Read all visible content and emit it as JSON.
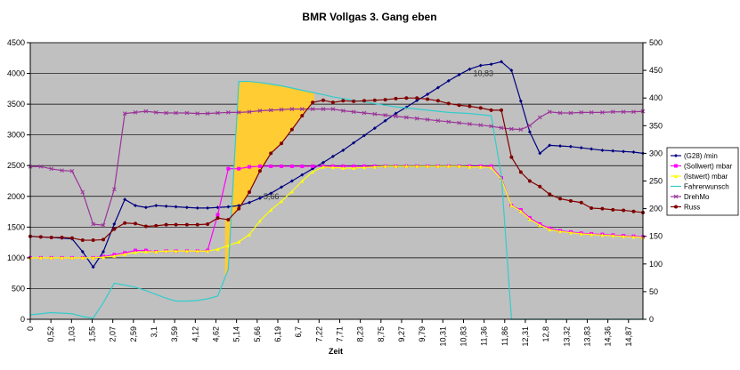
{
  "chart_data": {
    "type": "line",
    "title": "BMR Vollgas 3. Gang eben",
    "xlabel": "Zeit",
    "ylabel": "",
    "ylim": [
      0,
      4500
    ],
    "y2lim": [
      0,
      500
    ],
    "yticks": [
      0,
      500,
      1000,
      1500,
      2000,
      2500,
      3000,
      3500,
      4000,
      4500
    ],
    "y2ticks": [
      0,
      50,
      100,
      150,
      200,
      250,
      300,
      350,
      400,
      450,
      500
    ],
    "xlim": [
      0,
      15.1
    ],
    "xtick_labels": [
      "0",
      "0,52",
      "1,03",
      "1,55",
      "2,07",
      "2,59",
      "3,1",
      "3,59",
      "4,12",
      "4,62",
      "5,14",
      "5,66",
      "6,19",
      "6,7",
      "7,22",
      "7,71",
      "8,23",
      "8,75",
      "9,27",
      "9,79",
      "10,31",
      "10,83",
      "11,36",
      "11,86",
      "12,31",
      "12,8",
      "13,32",
      "13,83",
      "14,36",
      "14,87"
    ],
    "grid": true,
    "legend_position": "right",
    "background": "#c0c0c0",
    "annotations": [
      {
        "text": "10,83",
        "x": 10.83,
        "y": 4000
      },
      {
        "text": "5,66",
        "x": 5.66,
        "y": 2000
      }
    ],
    "shaded_area": {
      "color": "#ffcc33",
      "x_start": 4.8,
      "x_end": 7.0,
      "between": [
        "Fahrerwunsch",
        "Russ"
      ]
    },
    "series": [
      {
        "name": "(G28) /min",
        "axis": "left",
        "color": "#000080",
        "marker": "diamond",
        "x": [
          0,
          0.26,
          0.52,
          0.78,
          1.03,
          1.29,
          1.55,
          1.8,
          2.07,
          2.33,
          2.59,
          2.85,
          3.1,
          3.35,
          3.59,
          3.86,
          4.12,
          4.37,
          4.62,
          4.88,
          5.14,
          5.4,
          5.66,
          5.93,
          6.19,
          6.45,
          6.7,
          6.96,
          7.22,
          7.46,
          7.71,
          7.97,
          8.23,
          8.49,
          8.75,
          9.01,
          9.27,
          9.53,
          9.79,
          10.05,
          10.31,
          10.57,
          10.83,
          11.1,
          11.36,
          11.61,
          11.86,
          12.09,
          12.31,
          12.56,
          12.8,
          13.06,
          13.32,
          13.58,
          13.83,
          14.1,
          14.36,
          14.62,
          14.87,
          15.1
        ],
        "values": [
          1350,
          1340,
          1330,
          1320,
          1310,
          1100,
          850,
          1100,
          1550,
          1950,
          1850,
          1820,
          1850,
          1840,
          1830,
          1820,
          1810,
          1810,
          1820,
          1830,
          1850,
          1900,
          1970,
          2050,
          2150,
          2250,
          2350,
          2450,
          2550,
          2650,
          2750,
          2870,
          2990,
          3110,
          3230,
          3350,
          3450,
          3560,
          3660,
          3770,
          3880,
          3980,
          4070,
          4130,
          4150,
          4190,
          4050,
          3550,
          3050,
          2700,
          2830,
          2820,
          2810,
          2790,
          2770,
          2750,
          2740,
          2730,
          2720,
          2700
        ]
      },
      {
        "name": "(Sollwert) mbar",
        "axis": "left",
        "color": "#ff00ff",
        "marker": "square",
        "x": [
          0,
          0.26,
          0.52,
          0.78,
          1.03,
          1.29,
          1.55,
          1.8,
          2.07,
          2.33,
          2.59,
          2.85,
          3.1,
          3.35,
          3.59,
          3.86,
          4.12,
          4.37,
          4.62,
          4.88,
          5.14,
          5.4,
          5.66,
          5.93,
          6.19,
          6.45,
          6.7,
          6.96,
          7.22,
          7.46,
          7.71,
          7.97,
          8.23,
          8.49,
          8.75,
          9.01,
          9.27,
          9.53,
          9.79,
          10.05,
          10.31,
          10.57,
          10.83,
          11.1,
          11.36,
          11.61,
          11.86,
          12.09,
          12.31,
          12.56,
          12.8,
          13.06,
          13.32,
          13.58,
          13.83,
          14.1,
          14.36,
          14.62,
          14.87,
          15.1
        ],
        "values": [
          1000,
          1000,
          1000,
          1000,
          1000,
          1000,
          1000,
          1020,
          1050,
          1080,
          1120,
          1120,
          1100,
          1110,
          1110,
          1110,
          1110,
          1120,
          1700,
          2450,
          2450,
          2480,
          2490,
          2490,
          2490,
          2490,
          2490,
          2490,
          2490,
          2490,
          2490,
          2490,
          2490,
          2490,
          2490,
          2490,
          2490,
          2490,
          2490,
          2490,
          2490,
          2490,
          2490,
          2490,
          2490,
          2300,
          1850,
          1780,
          1650,
          1550,
          1480,
          1440,
          1420,
          1400,
          1390,
          1380,
          1370,
          1360,
          1350,
          1340
        ]
      },
      {
        "name": "(Istwert) mbar",
        "axis": "left",
        "color": "#ffff00",
        "marker": "triangle",
        "x": [
          0,
          0.26,
          0.52,
          0.78,
          1.03,
          1.29,
          1.55,
          1.8,
          2.07,
          2.33,
          2.59,
          2.85,
          3.1,
          3.35,
          3.59,
          3.86,
          4.12,
          4.37,
          4.62,
          4.88,
          5.14,
          5.4,
          5.66,
          5.93,
          6.19,
          6.45,
          6.7,
          6.96,
          7.22,
          7.46,
          7.71,
          7.97,
          8.23,
          8.49,
          8.75,
          9.01,
          9.27,
          9.53,
          9.79,
          10.05,
          10.31,
          10.57,
          10.83,
          11.1,
          11.36,
          11.61,
          11.86,
          12.09,
          12.31,
          12.56,
          12.8,
          13.06,
          13.32,
          13.58,
          13.83,
          14.1,
          14.36,
          14.62,
          14.87,
          15.1
        ],
        "values": [
          1000,
          1000,
          1000,
          1000,
          1000,
          1000,
          1000,
          1010,
          1030,
          1060,
          1090,
          1100,
          1100,
          1110,
          1110,
          1110,
          1110,
          1110,
          1140,
          1200,
          1260,
          1380,
          1600,
          1780,
          1920,
          2080,
          2250,
          2400,
          2480,
          2470,
          2460,
          2460,
          2470,
          2480,
          2490,
          2490,
          2490,
          2490,
          2490,
          2490,
          2490,
          2490,
          2480,
          2480,
          2470,
          2280,
          1850,
          1760,
          1630,
          1530,
          1460,
          1430,
          1410,
          1390,
          1380,
          1370,
          1360,
          1350,
          1340,
          1330
        ]
      },
      {
        "name": "Fahrerwunsch",
        "axis": "right",
        "color": "#33cccc",
        "marker": "none",
        "x": [
          0,
          0.26,
          0.52,
          0.78,
          1.03,
          1.29,
          1.55,
          1.8,
          2.07,
          2.33,
          2.59,
          2.85,
          3.1,
          3.35,
          3.59,
          3.86,
          4.12,
          4.37,
          4.62,
          4.88,
          5.14,
          5.4,
          5.66,
          5.93,
          6.19,
          6.45,
          6.7,
          6.96,
          7.22,
          7.46,
          7.71,
          7.97,
          8.23,
          8.49,
          8.75,
          9.01,
          9.27,
          9.53,
          9.79,
          10.05,
          10.31,
          10.57,
          10.83,
          11.1,
          11.36,
          11.61,
          11.86,
          12.09,
          12.31,
          12.56,
          12.8,
          13.06,
          13.32,
          13.58,
          13.83,
          14.1,
          14.36,
          14.62,
          14.87,
          15.1
        ],
        "values": [
          8,
          10,
          12,
          11,
          10,
          5,
          2,
          30,
          65,
          62,
          58,
          52,
          45,
          38,
          33,
          33,
          34,
          37,
          42,
          90,
          430,
          430,
          428,
          425,
          422,
          418,
          414,
          410,
          406,
          402,
          399,
          396,
          393,
          390,
          387,
          384,
          382,
          380,
          378,
          376,
          374,
          373,
          372,
          370,
          368,
          260,
          0,
          0,
          0,
          0,
          0,
          0,
          0,
          0,
          0,
          0,
          0,
          0,
          0,
          0
        ]
      },
      {
        "name": "DrehMo",
        "axis": "right",
        "color": "#993399",
        "marker": "cross",
        "x": [
          0,
          0.26,
          0.52,
          0.78,
          1.03,
          1.29,
          1.55,
          1.8,
          2.07,
          2.33,
          2.59,
          2.85,
          3.1,
          3.35,
          3.59,
          3.86,
          4.12,
          4.37,
          4.62,
          4.88,
          5.14,
          5.4,
          5.66,
          5.93,
          6.19,
          6.45,
          6.7,
          6.96,
          7.22,
          7.46,
          7.71,
          7.97,
          8.23,
          8.49,
          8.75,
          9.01,
          9.27,
          9.53,
          9.79,
          10.05,
          10.31,
          10.57,
          10.83,
          11.1,
          11.36,
          11.61,
          11.86,
          12.09,
          12.31,
          12.56,
          12.8,
          13.06,
          13.32,
          13.58,
          13.83,
          14.1,
          14.36,
          14.62,
          14.87,
          15.1
        ],
        "values": [
          276,
          276,
          272,
          269,
          268,
          230,
          172,
          170,
          235,
          372,
          374,
          376,
          374,
          373,
          373,
          373,
          372,
          372,
          373,
          374,
          374,
          375,
          377,
          378,
          379,
          380,
          380,
          380,
          380,
          380,
          377,
          375,
          373,
          371,
          369,
          367,
          365,
          363,
          361,
          359,
          357,
          355,
          353,
          351,
          349,
          346,
          344,
          343,
          350,
          365,
          375,
          373,
          373,
          374,
          374,
          374,
          375,
          375,
          375,
          376
        ]
      },
      {
        "name": "Russ",
        "axis": "right",
        "color": "#800000",
        "marker": "circle",
        "x": [
          0,
          0.26,
          0.52,
          0.78,
          1.03,
          1.29,
          1.55,
          1.8,
          2.07,
          2.33,
          2.59,
          2.85,
          3.1,
          3.35,
          3.59,
          3.86,
          4.12,
          4.37,
          4.62,
          4.88,
          5.14,
          5.4,
          5.66,
          5.93,
          6.19,
          6.45,
          6.7,
          6.96,
          7.22,
          7.46,
          7.71,
          7.97,
          8.23,
          8.49,
          8.75,
          9.01,
          9.27,
          9.53,
          9.79,
          10.05,
          10.31,
          10.57,
          10.83,
          11.1,
          11.36,
          11.61,
          11.86,
          12.09,
          12.31,
          12.56,
          12.8,
          13.06,
          13.32,
          13.58,
          13.83,
          14.1,
          14.36,
          14.62,
          14.87,
          15.1
        ],
        "values": [
          150,
          149,
          148,
          148,
          147,
          143,
          143,
          144,
          163,
          174,
          173,
          168,
          169,
          171,
          171,
          171,
          171,
          172,
          183,
          180,
          200,
          230,
          268,
          300,
          318,
          343,
          368,
          392,
          396,
          392,
          395,
          394,
          395,
          396,
          397,
          399,
          400,
          400,
          398,
          395,
          390,
          387,
          385,
          382,
          378,
          378,
          293,
          266,
          250,
          240,
          226,
          218,
          214,
          211,
          201,
          200,
          198,
          197,
          195,
          193
        ]
      }
    ]
  }
}
